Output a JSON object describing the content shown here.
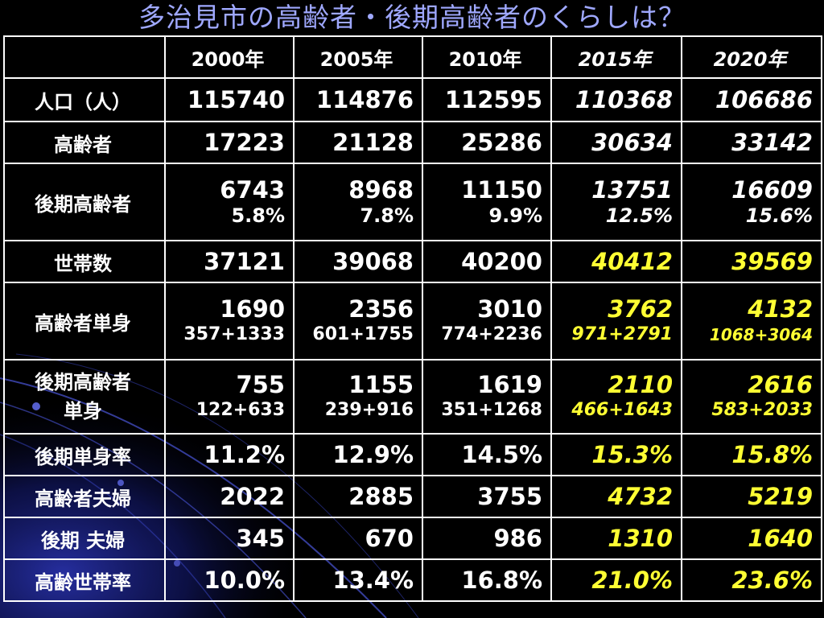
{
  "title": "多治見市の高齢者・後期高齢者のくらしは？",
  "colors": {
    "background": "#000000",
    "title": "#9fa8ff",
    "text": "#ffffff",
    "highlight": "#ffff33",
    "decor": "#1a1f8a"
  },
  "table": {
    "headers": [
      "2000年",
      "2005年",
      "2010年",
      "2015年",
      "2020年"
    ],
    "rows": [
      {
        "label": "人口（人）",
        "values": [
          "115740",
          "114876",
          "112595",
          "110368",
          "106686"
        ]
      },
      {
        "label": "高齢者",
        "values": [
          "17223",
          "21128",
          "25286",
          "30634",
          "33142"
        ]
      },
      {
        "label": "後期高齢者",
        "values": [
          "6743",
          "8968",
          "11150",
          "13751",
          "16609"
        ],
        "subs": [
          "5.8%",
          "7.8%",
          "9.9%",
          "12.5%",
          "15.6%"
        ]
      },
      {
        "label": "世帯数",
        "values": [
          "37121",
          "39068",
          "40200",
          "40412",
          "39569"
        ]
      },
      {
        "label": "高齢者単身",
        "values": [
          "1690",
          "2356",
          "3010",
          "3762",
          "4132"
        ],
        "subs": [
          "357+1333",
          "601+1755",
          "774+2236",
          "971+2791",
          "1068+3064"
        ]
      },
      {
        "label_line1": "後期高齢者",
        "label_line2": "単身",
        "values": [
          "755",
          "1155",
          "1619",
          "2110",
          "2616"
        ],
        "subs": [
          "122+633",
          "239+916",
          "351+1268",
          "466+1643",
          "583+2033"
        ]
      },
      {
        "label": "後期単身率",
        "values": [
          "11.2%",
          "12.9%",
          "14.5%",
          "15.3%",
          "15.8%"
        ]
      },
      {
        "label": "高齢者夫婦",
        "values": [
          "2022",
          "2885",
          "3755",
          "4732",
          "5219"
        ]
      },
      {
        "label": "後期 夫婦",
        "values": [
          "345",
          "670",
          "986",
          "1310",
          "1640"
        ]
      },
      {
        "label": "高齢世帯率",
        "values": [
          "10.0%",
          "13.4%",
          "16.8%",
          "21.0%",
          "23.6%"
        ]
      }
    ]
  }
}
